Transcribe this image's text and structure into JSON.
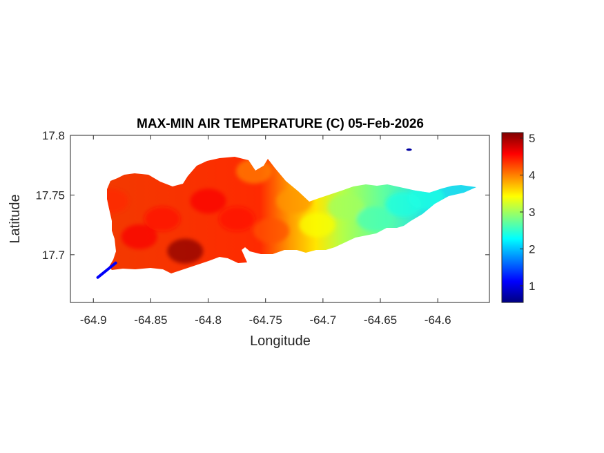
{
  "chart_data": {
    "type": "heatmap",
    "title": "MAX-MIN AIR TEMPERATURE (C) 05-Feb-2026",
    "xlabel": "Longitude",
    "ylabel": "Latitude",
    "xlim": [
      -64.92,
      -64.555
    ],
    "ylim": [
      17.66,
      17.8
    ],
    "xticks": [
      -64.9,
      -64.85,
      -64.8,
      -64.75,
      -64.7,
      -64.65,
      -64.6
    ],
    "xtick_labels": [
      "-64.9",
      "-64.85",
      "-64.8",
      "-64.75",
      "-64.7",
      "-64.65",
      "-64.6"
    ],
    "yticks": [
      17.7,
      17.75,
      17.8
    ],
    "ytick_labels": [
      "17.7",
      "17.75",
      "17.8"
    ],
    "colorbar": {
      "colormap": "jet",
      "range": [
        0.55,
        5.15
      ],
      "ticks": [
        1,
        2,
        3,
        4,
        5
      ],
      "tick_labels": [
        "1",
        "2",
        "3",
        "4",
        "5"
      ]
    },
    "grid": false,
    "hotspots": [
      {
        "lon": -64.885,
        "lat": 17.745,
        "value": 4.4
      },
      {
        "lon": -64.86,
        "lat": 17.715,
        "value": 4.6
      },
      {
        "lon": -64.84,
        "lat": 17.73,
        "value": 4.5
      },
      {
        "lon": -64.82,
        "lat": 17.703,
        "value": 5.1
      },
      {
        "lon": -64.8,
        "lat": 17.745,
        "value": 4.6
      },
      {
        "lon": -64.775,
        "lat": 17.73,
        "value": 4.5
      },
      {
        "lon": -64.76,
        "lat": 17.77,
        "value": 4.0
      },
      {
        "lon": -64.745,
        "lat": 17.72,
        "value": 4.2
      },
      {
        "lon": -64.725,
        "lat": 17.745,
        "value": 3.9
      },
      {
        "lon": -64.705,
        "lat": 17.725,
        "value": 3.4
      },
      {
        "lon": -64.68,
        "lat": 17.74,
        "value": 3.0
      },
      {
        "lon": -64.655,
        "lat": 17.73,
        "value": 2.6
      },
      {
        "lon": -64.63,
        "lat": 17.742,
        "value": 2.4
      },
      {
        "lon": -64.61,
        "lat": 17.748,
        "value": 2.4
      },
      {
        "lon": -64.895,
        "lat": 17.685,
        "value": 1.1
      },
      {
        "lon": -64.625,
        "lat": 17.788,
        "value": 0.7
      }
    ]
  }
}
